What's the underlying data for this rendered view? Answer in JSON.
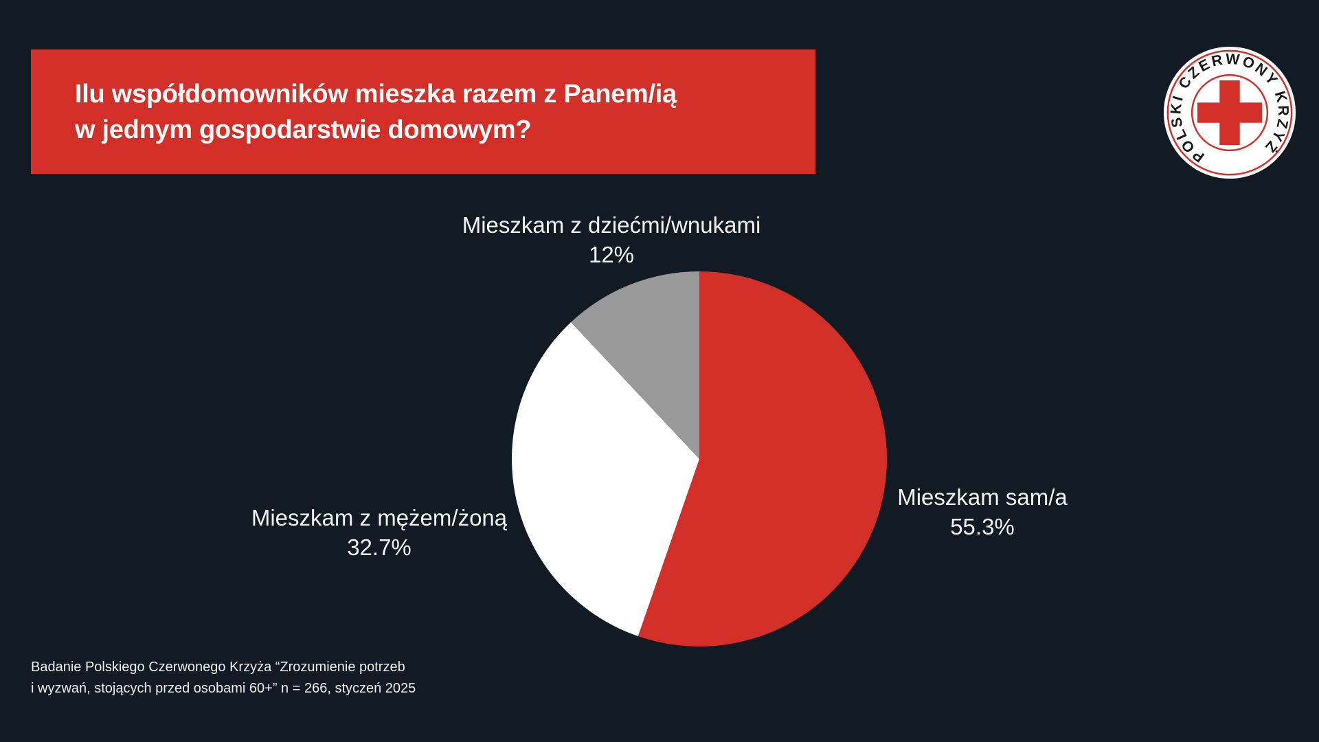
{
  "page": {
    "background": "#121B24"
  },
  "banner": {
    "background": "#D22F28",
    "title_line1": "Ilu współdomowników mieszka razem z Panem/ią",
    "title_line2": "w jednym gospodarstwie domowym?"
  },
  "logo": {
    "ring_text": "POLSKI CZERWONY KRZYŻ",
    "disc_color": "#FFFFFF",
    "ring_color": "#D22F28",
    "cross_color": "#D22F28",
    "text_color": "#1A1A1A"
  },
  "chart_data": {
    "type": "pie",
    "title": "Ilu współdomowników mieszka razem z Panem/ią w jednym gospodarstwie domowym?",
    "start_angle_deg": 0,
    "direction": "clockwise",
    "legend_position": "labels-outside",
    "slices": [
      {
        "label": "Mieszkam sam/a",
        "value": 55.3,
        "percent_label": "55.3%",
        "color": "#D22F28"
      },
      {
        "label": "Mieszkam z mężem/żoną",
        "value": 32.7,
        "percent_label": "32.7%",
        "color": "#FFFFFF"
      },
      {
        "label": "Mieszkam z dziećmi/wnukami",
        "value": 12,
        "percent_label": "12%",
        "color": "#999999"
      }
    ]
  },
  "footer": {
    "line1": "Badanie Polskiego Czerwonego Krzyża “Zrozumienie potrzeb",
    "line2": "i wyzwań, stojących przed osobami 60+” n = 266, styczeń 2025"
  }
}
